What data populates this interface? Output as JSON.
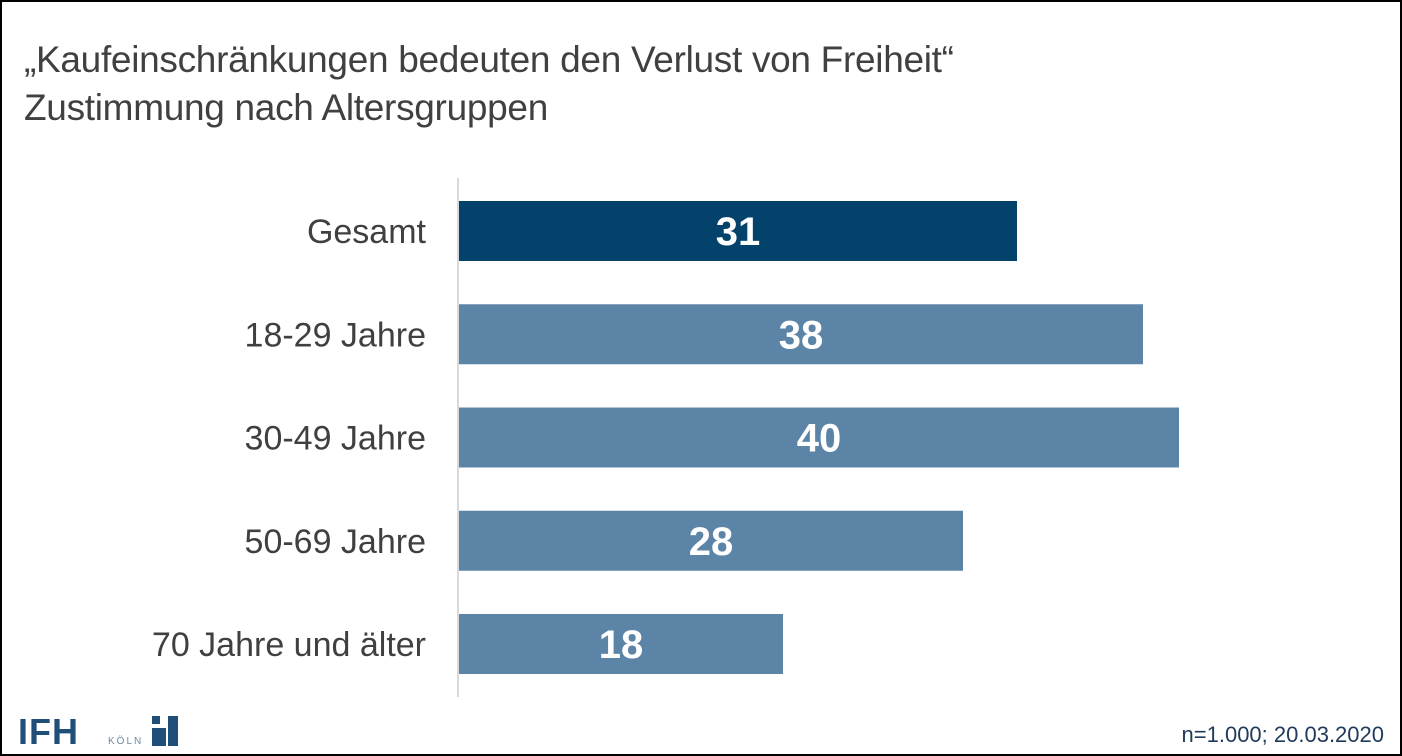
{
  "page": {
    "title_line1": "„Kaufeinschränkungen bedeuten den Verlust von Freiheit“",
    "title_line2": "Zustimmung nach Altersgruppen",
    "footnote": "n=1.000; 20.03.2020",
    "logo": {
      "text": "IFH",
      "subtext": "KÖLN"
    }
  },
  "colors": {
    "highlight_bar": "#02426b",
    "bar": "#5b84a7",
    "axis": "#d9d9d9",
    "title_text": "#404040",
    "logo": "#1f4e79"
  },
  "chart_data": {
    "type": "bar",
    "orientation": "horizontal",
    "title": "„Kaufeinschränkungen bedeuten den Verlust von Freiheit“ Zustimmung nach Altersgruppen",
    "xlabel": "",
    "ylabel": "",
    "categories": [
      "Gesamt",
      "18-29 Jahre",
      "30-49 Jahre",
      "50-69 Jahre",
      "70 Jahre und älter"
    ],
    "values": [
      31,
      38,
      40,
      28,
      18
    ],
    "highlighted": [
      "Gesamt"
    ],
    "unit": "%",
    "xlim": [
      0,
      40
    ],
    "grid": false,
    "legend": "none",
    "data_labels": [
      "31",
      "38",
      "40",
      "28",
      "18"
    ]
  }
}
